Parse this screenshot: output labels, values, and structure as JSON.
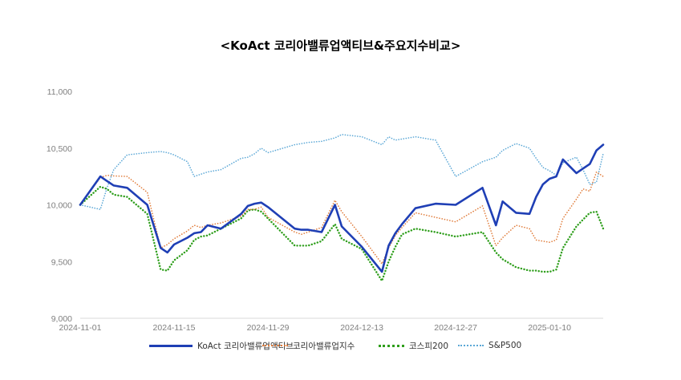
{
  "chart_data": {
    "type": "line",
    "title": "<KoAct 코리아밸류업액티브&주요지수비교>",
    "xlabel": "",
    "ylabel": "",
    "ylim": [
      9000,
      11000
    ],
    "yticks": [
      "9,000",
      "9,500",
      "10,000",
      "10,500",
      "11,000"
    ],
    "ytick_values": [
      9000,
      9500,
      10000,
      10500,
      11000
    ],
    "xticks": [
      "2024-11-01",
      "2024-11-15",
      "2024-11-29",
      "2024-12-13",
      "2024-12-27",
      "2025-01-10"
    ],
    "xtick_days": [
      0,
      14,
      28,
      42,
      56,
      70
    ],
    "xlim_days": [
      0,
      78
    ],
    "grid": false,
    "legend_position": "bottom",
    "series": [
      {
        "name": "KoAct 코리아밸류업액티브",
        "color": "#1f3fb5",
        "style": "solid",
        "x_days": [
          0,
          3,
          4,
          5,
          7,
          10,
          12,
          13,
          14,
          16,
          17,
          18,
          19,
          21,
          24,
          25,
          26,
          27,
          28,
          32,
          33,
          34,
          36,
          38,
          39,
          42,
          45,
          46,
          47,
          48,
          50,
          53,
          56,
          60,
          62,
          63,
          65,
          67,
          68,
          69,
          70,
          71,
          72,
          74,
          75,
          76,
          77,
          78
        ],
        "values": [
          10000,
          10250,
          10210,
          10170,
          10150,
          10000,
          9620,
          9580,
          9650,
          9710,
          9750,
          9760,
          9820,
          9790,
          9920,
          9990,
          10010,
          10020,
          9980,
          9790,
          9780,
          9780,
          9760,
          10000,
          9810,
          9630,
          9410,
          9640,
          9750,
          9830,
          9970,
          10010,
          10000,
          10150,
          9820,
          10030,
          9930,
          9920,
          10070,
          10180,
          10230,
          10250,
          10400,
          10280,
          10320,
          10360,
          10480,
          10530
        ]
      },
      {
        "name": "코리아밸류업지수",
        "color": "#e07b39",
        "style": "dotted",
        "x_days": [
          0,
          3,
          4,
          5,
          7,
          10,
          12,
          13,
          14,
          16,
          17,
          18,
          19,
          21,
          24,
          25,
          26,
          27,
          28,
          32,
          33,
          34,
          36,
          38,
          39,
          42,
          45,
          46,
          47,
          48,
          50,
          53,
          56,
          60,
          62,
          63,
          65,
          67,
          68,
          69,
          70,
          71,
          72,
          74,
          75,
          76,
          77,
          78
        ],
        "values": [
          10000,
          10240,
          10260,
          10255,
          10250,
          10110,
          9620,
          9650,
          9700,
          9770,
          9820,
          9800,
          9820,
          9840,
          9900,
          9960,
          9960,
          9980,
          9890,
          9760,
          9740,
          9760,
          9800,
          10040,
          9940,
          9720,
          9480,
          9620,
          9730,
          9800,
          9930,
          9890,
          9850,
          9990,
          9640,
          9710,
          9820,
          9790,
          9690,
          9680,
          9670,
          9690,
          9880,
          10050,
          10140,
          10120,
          10290,
          10250
        ]
      },
      {
        "name": "코스피200",
        "color": "#2e9e1b",
        "style": "dotted",
        "x_days": [
          0,
          3,
          4,
          5,
          7,
          10,
          12,
          13,
          14,
          16,
          17,
          18,
          19,
          21,
          24,
          25,
          26,
          27,
          28,
          32,
          33,
          34,
          36,
          38,
          39,
          42,
          45,
          46,
          47,
          48,
          50,
          53,
          56,
          60,
          62,
          63,
          65,
          67,
          68,
          69,
          70,
          71,
          72,
          74,
          75,
          76,
          77,
          78
        ],
        "values": [
          10000,
          10160,
          10140,
          10090,
          10070,
          9920,
          9430,
          9420,
          9510,
          9600,
          9690,
          9720,
          9730,
          9790,
          9880,
          9950,
          9960,
          9940,
          9880,
          9640,
          9640,
          9640,
          9680,
          9830,
          9700,
          9610,
          9330,
          9500,
          9630,
          9740,
          9790,
          9760,
          9720,
          9760,
          9580,
          9520,
          9450,
          9420,
          9420,
          9410,
          9410,
          9430,
          9620,
          9810,
          9870,
          9930,
          9940,
          9790
        ]
      },
      {
        "name": "S&P500",
        "color": "#5aa7d6",
        "style": "dotted",
        "x_days": [
          0,
          3,
          4,
          5,
          7,
          10,
          12,
          13,
          14,
          16,
          17,
          18,
          19,
          21,
          24,
          25,
          26,
          27,
          28,
          32,
          33,
          34,
          36,
          38,
          39,
          42,
          45,
          46,
          47,
          48,
          50,
          53,
          56,
          60,
          62,
          63,
          65,
          67,
          68,
          69,
          70,
          71,
          72,
          74,
          75,
          76,
          77,
          78
        ],
        "values": [
          10000,
          9960,
          10150,
          10310,
          10440,
          10460,
          10470,
          10460,
          10440,
          10380,
          10250,
          10270,
          10290,
          10310,
          10410,
          10420,
          10450,
          10500,
          10460,
          10530,
          10540,
          10550,
          10560,
          10590,
          10620,
          10600,
          10530,
          10600,
          10570,
          10580,
          10600,
          10570,
          10250,
          10380,
          10420,
          10480,
          10540,
          10500,
          10410,
          10330,
          10300,
          10260,
          10370,
          10420,
          10310,
          10180,
          10200,
          10450
        ]
      }
    ]
  }
}
